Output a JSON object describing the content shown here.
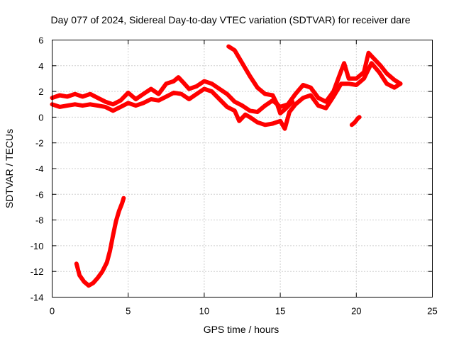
{
  "chart_data": {
    "type": "scatter",
    "title": "Day 077 of 2024, Sidereal Day-to-day VTEC variation (SDTVAR) for receiver dare",
    "xlabel": "GPS time / hours",
    "ylabel": "SDTVAR / TECUs",
    "xlim": [
      0,
      25
    ],
    "ylim": [
      -14,
      6
    ],
    "xticks": [
      0,
      5,
      10,
      15,
      20,
      25
    ],
    "yticks": [
      6,
      4,
      2,
      0,
      -2,
      -4,
      -6,
      -8,
      -10,
      -12,
      -14
    ],
    "grid": true,
    "marker": "+",
    "color": "#ff0000",
    "series": [
      {
        "name": "main-band-upper",
        "points": [
          [
            0.0,
            1.5
          ],
          [
            0.5,
            1.7
          ],
          [
            1.0,
            1.6
          ],
          [
            1.5,
            1.8
          ],
          [
            2.0,
            1.6
          ],
          [
            2.5,
            1.8
          ],
          [
            3.0,
            1.5
          ],
          [
            3.5,
            1.2
          ],
          [
            4.0,
            1.0
          ],
          [
            4.5,
            1.3
          ],
          [
            5.0,
            1.9
          ],
          [
            5.5,
            1.4
          ],
          [
            6.0,
            1.8
          ],
          [
            6.5,
            2.2
          ],
          [
            7.0,
            1.8
          ],
          [
            7.5,
            2.6
          ],
          [
            8.0,
            2.8
          ],
          [
            8.3,
            3.1
          ],
          [
            8.7,
            2.6
          ],
          [
            9.0,
            2.2
          ],
          [
            9.5,
            2.4
          ],
          [
            10.0,
            2.8
          ],
          [
            10.5,
            2.6
          ],
          [
            11.0,
            2.2
          ],
          [
            11.5,
            1.8
          ],
          [
            12.0,
            1.2
          ],
          [
            12.5,
            0.9
          ],
          [
            13.0,
            0.5
          ],
          [
            13.5,
            0.4
          ],
          [
            14.0,
            0.9
          ],
          [
            14.5,
            1.3
          ],
          [
            15.0,
            0.8
          ],
          [
            15.5,
            1.0
          ],
          [
            16.0,
            1.8
          ],
          [
            16.5,
            2.5
          ],
          [
            17.0,
            2.3
          ],
          [
            17.5,
            1.5
          ],
          [
            18.0,
            1.2
          ],
          [
            18.5,
            2.0
          ],
          [
            19.0,
            3.6
          ],
          [
            19.2,
            4.2
          ],
          [
            19.5,
            3.0
          ],
          [
            20.0,
            3.0
          ],
          [
            20.5,
            3.5
          ],
          [
            20.8,
            5.0
          ],
          [
            21.2,
            4.5
          ],
          [
            21.6,
            4.0
          ],
          [
            22.0,
            3.4
          ],
          [
            22.5,
            2.9
          ],
          [
            22.9,
            2.6
          ]
        ]
      },
      {
        "name": "main-band-lower",
        "points": [
          [
            0.0,
            1.0
          ],
          [
            0.5,
            0.8
          ],
          [
            1.0,
            0.9
          ],
          [
            1.5,
            1.0
          ],
          [
            2.0,
            0.9
          ],
          [
            2.5,
            1.0
          ],
          [
            3.0,
            0.9
          ],
          [
            3.5,
            0.8
          ],
          [
            4.0,
            0.5
          ],
          [
            4.5,
            0.8
          ],
          [
            5.0,
            1.1
          ],
          [
            5.5,
            0.9
          ],
          [
            6.0,
            1.1
          ],
          [
            6.5,
            1.4
          ],
          [
            7.0,
            1.3
          ],
          [
            7.5,
            1.6
          ],
          [
            8.0,
            1.9
          ],
          [
            8.5,
            1.8
          ],
          [
            9.0,
            1.4
          ],
          [
            9.5,
            1.8
          ],
          [
            10.0,
            2.2
          ],
          [
            10.5,
            2.0
          ],
          [
            11.0,
            1.4
          ],
          [
            11.5,
            0.8
          ],
          [
            12.0,
            0.5
          ],
          [
            12.3,
            -0.3
          ],
          [
            12.7,
            0.2
          ],
          [
            13.0,
            0.0
          ],
          [
            13.5,
            -0.4
          ],
          [
            14.0,
            -0.6
          ],
          [
            14.5,
            -0.5
          ],
          [
            15.0,
            -0.3
          ],
          [
            15.3,
            -0.9
          ],
          [
            15.6,
            0.4
          ],
          [
            16.0,
            1.0
          ],
          [
            16.5,
            1.5
          ],
          [
            17.0,
            1.7
          ],
          [
            17.5,
            0.9
          ],
          [
            18.0,
            0.7
          ],
          [
            18.5,
            1.6
          ],
          [
            19.0,
            2.6
          ],
          [
            19.5,
            2.6
          ],
          [
            20.0,
            2.5
          ],
          [
            20.5,
            3.0
          ],
          [
            21.0,
            4.2
          ],
          [
            21.5,
            3.5
          ],
          [
            22.0,
            2.6
          ],
          [
            22.5,
            2.3
          ],
          [
            22.9,
            2.6
          ]
        ]
      },
      {
        "name": "descending-arc",
        "points": [
          [
            11.6,
            5.5
          ],
          [
            12.0,
            5.2
          ],
          [
            12.5,
            4.2
          ],
          [
            13.0,
            3.2
          ],
          [
            13.5,
            2.3
          ],
          [
            14.0,
            1.8
          ],
          [
            14.5,
            1.7
          ],
          [
            14.8,
            1.0
          ],
          [
            15.0,
            0.3
          ],
          [
            15.3,
            0.6
          ],
          [
            15.8,
            1.2
          ]
        ]
      },
      {
        "name": "isolated-segment",
        "points": [
          [
            19.7,
            -0.6
          ],
          [
            19.9,
            -0.4
          ],
          [
            20.1,
            -0.1
          ],
          [
            20.2,
            0.0
          ]
        ]
      },
      {
        "name": "low-excursion",
        "points": [
          [
            1.6,
            -11.4
          ],
          [
            1.8,
            -12.3
          ],
          [
            2.1,
            -12.8
          ],
          [
            2.4,
            -13.1
          ],
          [
            2.7,
            -12.9
          ],
          [
            3.0,
            -12.5
          ],
          [
            3.3,
            -12.0
          ],
          [
            3.6,
            -11.3
          ],
          [
            3.8,
            -10.4
          ],
          [
            4.0,
            -9.2
          ],
          [
            4.2,
            -8.1
          ],
          [
            4.4,
            -7.3
          ],
          [
            4.6,
            -6.7
          ],
          [
            4.7,
            -6.3
          ]
        ]
      }
    ]
  }
}
